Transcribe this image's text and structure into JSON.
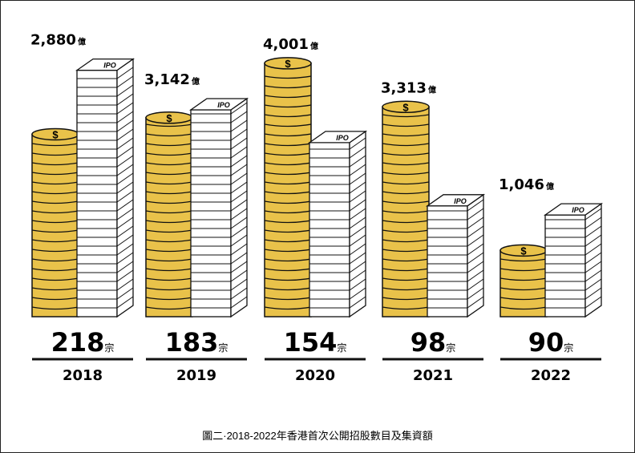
{
  "chart_data": {
    "type": "bar",
    "categories": [
      "2018",
      "2019",
      "2020",
      "2021",
      "2022"
    ],
    "coin_symbol": "$",
    "paper_label": "IPO",
    "series": [
      {
        "color": "#e9c24a",
        "values": [
          2880,
          3142,
          4001,
          3313,
          1046
        ],
        "value_labels": [
          "2,880",
          "3,142",
          "4,001",
          "3,313",
          "1,046"
        ],
        "unit": "億"
      },
      {
        "color": "#ffffff",
        "values": [
          218,
          183,
          154,
          98,
          90
        ],
        "unit": "宗"
      }
    ],
    "caption": "圖二·2018-2022年香港首次公開招股數目及集資額"
  }
}
